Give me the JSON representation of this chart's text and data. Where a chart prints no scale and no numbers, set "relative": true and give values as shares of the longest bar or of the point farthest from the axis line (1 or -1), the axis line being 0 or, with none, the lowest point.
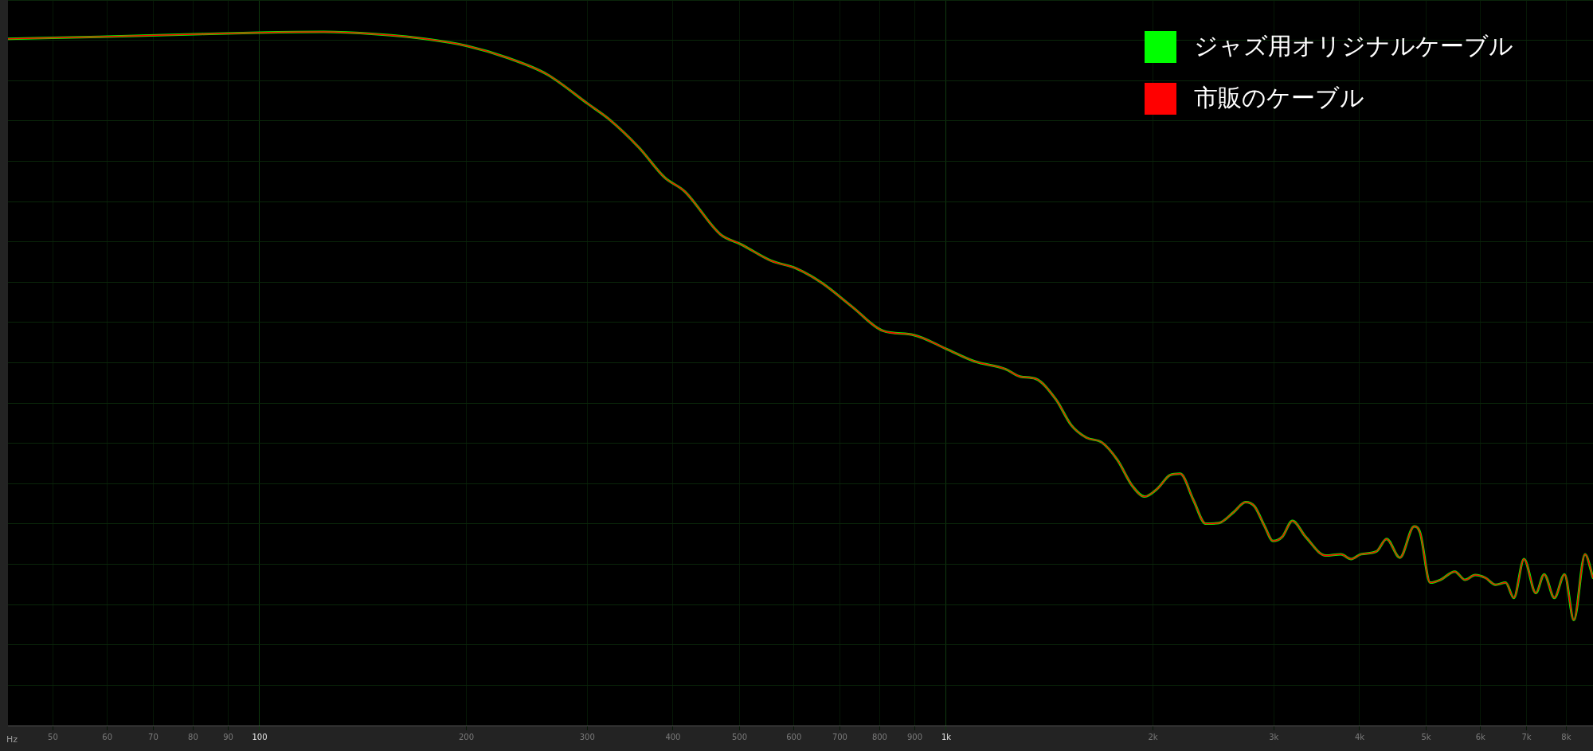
{
  "chart_data": {
    "type": "line",
    "relative": true,
    "log": "x",
    "xlabel": "Hz",
    "legend": "top right",
    "grid": true,
    "marker": "none",
    "line_style": "solid",
    "xlim": [
      43,
      8750
    ],
    "xticks": [
      50,
      60,
      70,
      80,
      90,
      100,
      200,
      300,
      400,
      500,
      600,
      700,
      800,
      900,
      {
        "value": 1000,
        "label": "1k"
      },
      {
        "value": 2000,
        "label": "2k"
      },
      {
        "value": 3000,
        "label": "3k"
      },
      {
        "value": 4000,
        "label": "4k"
      },
      {
        "value": 5000,
        "label": "5k"
      },
      {
        "value": 6000,
        "label": "6k"
      },
      {
        "value": 7000,
        "label": "7k"
      },
      {
        "value": 8000,
        "label": "8k"
      }
    ],
    "x": [
      43,
      58.5,
      82.3,
      100,
      124,
      147,
      174,
      200,
      229,
      262,
      301,
      322,
      357,
      389,
      416,
      469,
      502,
      556,
      605,
      659,
      731,
      809,
      897,
      1000,
      1100,
      1219,
      1283,
      1349,
      1445,
      1521,
      1600,
      1686,
      1775,
      1868,
      1945,
      2033,
      2118,
      2192,
      2291,
      2387,
      2496,
      2625,
      2728,
      2812,
      2910,
      2992,
      3086,
      3193,
      3338,
      3571,
      3757,
      3888,
      4020,
      4233,
      4379,
      4578,
      4803,
      4900,
      5068,
      5245,
      5505,
      5697,
      5893,
      6099,
      6311,
      6529,
      6710,
      6942,
      7224,
      7429,
      7687,
      7954,
      8206,
      8519,
      8750
    ],
    "series": [
      {
        "name": "ジャズ用オリジナルケーブル",
        "color": "#00ff00",
        "values": [
          0.99,
          0.993,
          0.997,
          0.999,
          1.0,
          0.997,
          0.99,
          0.98,
          0.963,
          0.939,
          0.896,
          0.875,
          0.833,
          0.79,
          0.77,
          0.708,
          0.694,
          0.67,
          0.659,
          0.638,
          0.603,
          0.569,
          0.563,
          0.543,
          0.525,
          0.514,
          0.503,
          0.5,
          0.47,
          0.433,
          0.415,
          0.408,
          0.383,
          0.345,
          0.33,
          0.342,
          0.361,
          0.363,
          0.325,
          0.291,
          0.292,
          0.308,
          0.322,
          0.316,
          0.287,
          0.266,
          0.272,
          0.295,
          0.272,
          0.245,
          0.247,
          0.24,
          0.247,
          0.251,
          0.269,
          0.242,
          0.287,
          0.278,
          0.206,
          0.21,
          0.222,
          0.21,
          0.217,
          0.213,
          0.203,
          0.206,
          0.184,
          0.24,
          0.191,
          0.218,
          0.184,
          0.218,
          0.152,
          0.247,
          0.213
        ]
      },
      {
        "name": "市販のケーブル",
        "color": "#ff0000",
        "values": [
          0.99,
          0.993,
          0.997,
          0.999,
          1.0,
          0.997,
          0.99,
          0.98,
          0.963,
          0.939,
          0.896,
          0.875,
          0.833,
          0.79,
          0.77,
          0.708,
          0.694,
          0.67,
          0.659,
          0.638,
          0.603,
          0.569,
          0.563,
          0.543,
          0.525,
          0.514,
          0.503,
          0.5,
          0.47,
          0.433,
          0.415,
          0.408,
          0.383,
          0.345,
          0.33,
          0.342,
          0.361,
          0.363,
          0.325,
          0.291,
          0.292,
          0.308,
          0.322,
          0.316,
          0.287,
          0.266,
          0.272,
          0.295,
          0.272,
          0.245,
          0.247,
          0.24,
          0.247,
          0.251,
          0.269,
          0.242,
          0.287,
          0.278,
          0.206,
          0.21,
          0.222,
          0.21,
          0.217,
          0.213,
          0.203,
          0.206,
          0.184,
          0.24,
          0.191,
          0.218,
          0.184,
          0.218,
          0.152,
          0.247,
          0.213
        ]
      }
    ]
  }
}
